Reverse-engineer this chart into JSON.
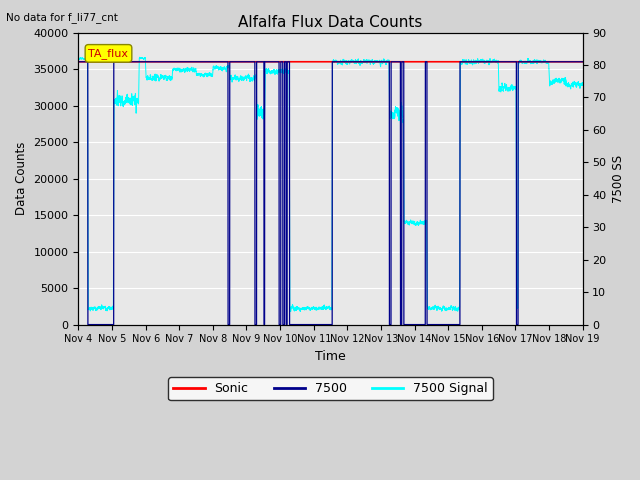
{
  "title": "Alfalfa Flux Data Counts",
  "subtitle": "No data for f_li77_cnt",
  "xlabel": "Time",
  "ylabel_left": "Data Counts",
  "ylabel_right": "7500 SS",
  "ylim_left": [
    0,
    40000
  ],
  "ylim_right": [
    0,
    90
  ],
  "yticks_left": [
    0,
    5000,
    10000,
    15000,
    20000,
    25000,
    30000,
    35000,
    40000
  ],
  "yticks_right": [
    0,
    10,
    20,
    30,
    40,
    50,
    60,
    70,
    80,
    90
  ],
  "x_tick_labels": [
    "Nov 4",
    "Nov 5",
    "Nov 6",
    "Nov 7",
    "Nov 8",
    "Nov 9",
    "Nov 10",
    "Nov 11",
    "Nov 12",
    "Nov 13",
    "Nov 14",
    "Nov 15",
    "Nov 16",
    "Nov 17",
    "Nov 18",
    "Nov 19"
  ],
  "background_color": "#d3d3d3",
  "plot_bg_color": "#e8e8e8",
  "sonic_color": "#ff0000",
  "li7500_color": "#00008b",
  "signal_color": "#00ffff",
  "sonic_level": 36000,
  "signal_base": 82,
  "ta_flux_box_color": "#ffff00",
  "ta_flux_text_color": "#cc0000",
  "legend_labels": [
    "Sonic",
    "7500",
    "7500 Signal"
  ]
}
